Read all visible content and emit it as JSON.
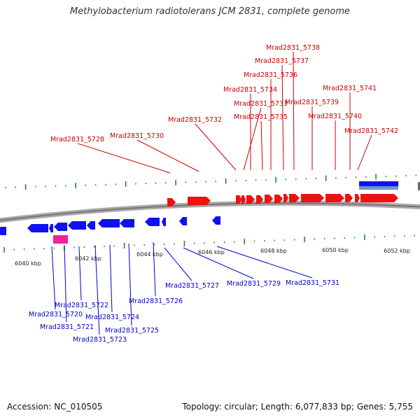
{
  "title": "Methylobacterium radiotolerans JCM 2831, complete genome",
  "footer": {
    "accession": "Accession: NC_010505",
    "summary": "Topology: circular; Length: 6,077,833 bp; Genes: 5,755"
  },
  "colors": {
    "forward_gene": "#ee1111",
    "reverse_gene": "#1111ee",
    "rna_gene": "#ee2299",
    "tick": "#228822",
    "backbone": "#888888",
    "label_forward": "#cc0000",
    "label_reverse": "#0000cc"
  },
  "axis": {
    "ticks": [
      {
        "kbp": 6040,
        "label": "6040 kbp"
      },
      {
        "kbp": 6042,
        "label": "6042 kbp"
      },
      {
        "kbp": 6044,
        "label": "6044 kbp"
      },
      {
        "kbp": 6046,
        "label": "6046 kbp"
      },
      {
        "kbp": 6048,
        "label": "6048 kbp"
      },
      {
        "kbp": 6050,
        "label": "6050 kbp"
      },
      {
        "kbp": 6052,
        "label": "6052 kbp"
      }
    ]
  },
  "forward_labels": [
    "Mrad2831_5728",
    "Mrad2831_5730",
    "Mrad2831_5732",
    "Mrad2831_5733",
    "Mrad2831_5734",
    "Mrad2831_5735",
    "Mrad2831_5736",
    "Mrad2831_5737",
    "Mrad2831_5738",
    "Mrad2831_5739",
    "Mrad2831_5740",
    "Mrad2831_5741",
    "Mrad2831_5742"
  ],
  "reverse_labels": [
    "Mrad2831_5720",
    "Mrad2831_5721",
    "Mrad2831_5722",
    "Mrad2831_5723",
    "Mrad2831_5724",
    "Mrad2831_5725",
    "Mrad2831_5726",
    "Mrad2831_5727",
    "Mrad2831_5729",
    "Mrad2831_5731"
  ]
}
